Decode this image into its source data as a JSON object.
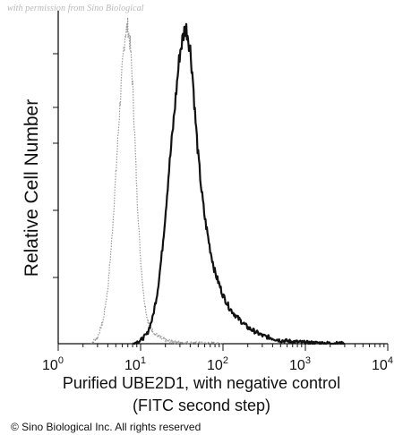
{
  "watermark": "with permission from Sino Biological",
  "copyright": "© Sino Biological Inc. All rights reserved",
  "chart_data": {
    "type": "line",
    "title": "",
    "xlabel_line1": "Purified UBE2D1, with negative control",
    "xlabel_line2": "(FITC second step)",
    "ylabel": "Relative Cell Number",
    "xscale": "log",
    "xlim": [
      1,
      10000
    ],
    "ylim": [
      0,
      100
    ],
    "x_ticks": [
      {
        "base": "10",
        "exp": "0"
      },
      {
        "base": "10",
        "exp": "1"
      },
      {
        "base": "10",
        "exp": "2"
      },
      {
        "base": "10",
        "exp": "3"
      },
      {
        "base": "10",
        "exp": "4"
      }
    ],
    "legend": "none",
    "grid": false,
    "series": [
      {
        "style": "dotted-gray",
        "color": "#9a9a9a",
        "x": [
          2.5,
          3,
          3.5,
          4,
          4.5,
          5,
          5.5,
          6,
          6.5,
          7,
          7.5,
          8,
          8.5,
          9,
          10,
          11,
          12,
          13,
          15,
          18,
          22,
          30,
          50,
          100
        ],
        "y": [
          0,
          2,
          7,
          17,
          33,
          52,
          70,
          85,
          96,
          98,
          92,
          80,
          64,
          47,
          26,
          14,
          8,
          5,
          3,
          1.5,
          0.8,
          0.3,
          0.1,
          0
        ]
      },
      {
        "style": "solid-black",
        "color": "#111111",
        "x": [
          8,
          10,
          12,
          14,
          16,
          18,
          20,
          22,
          25,
          28,
          30,
          33,
          35,
          37,
          40,
          43,
          46,
          50,
          55,
          60,
          70,
          80,
          100,
          120,
          150,
          200,
          300,
          500,
          1000,
          2000,
          3000
        ],
        "y": [
          0,
          1,
          3,
          8,
          16,
          27,
          40,
          53,
          68,
          82,
          90,
          95,
          98,
          96,
          91,
          82,
          70,
          58,
          47,
          39,
          29,
          22,
          15,
          11,
          8,
          5,
          2.5,
          1,
          0.3,
          0.1,
          0
        ]
      }
    ]
  }
}
